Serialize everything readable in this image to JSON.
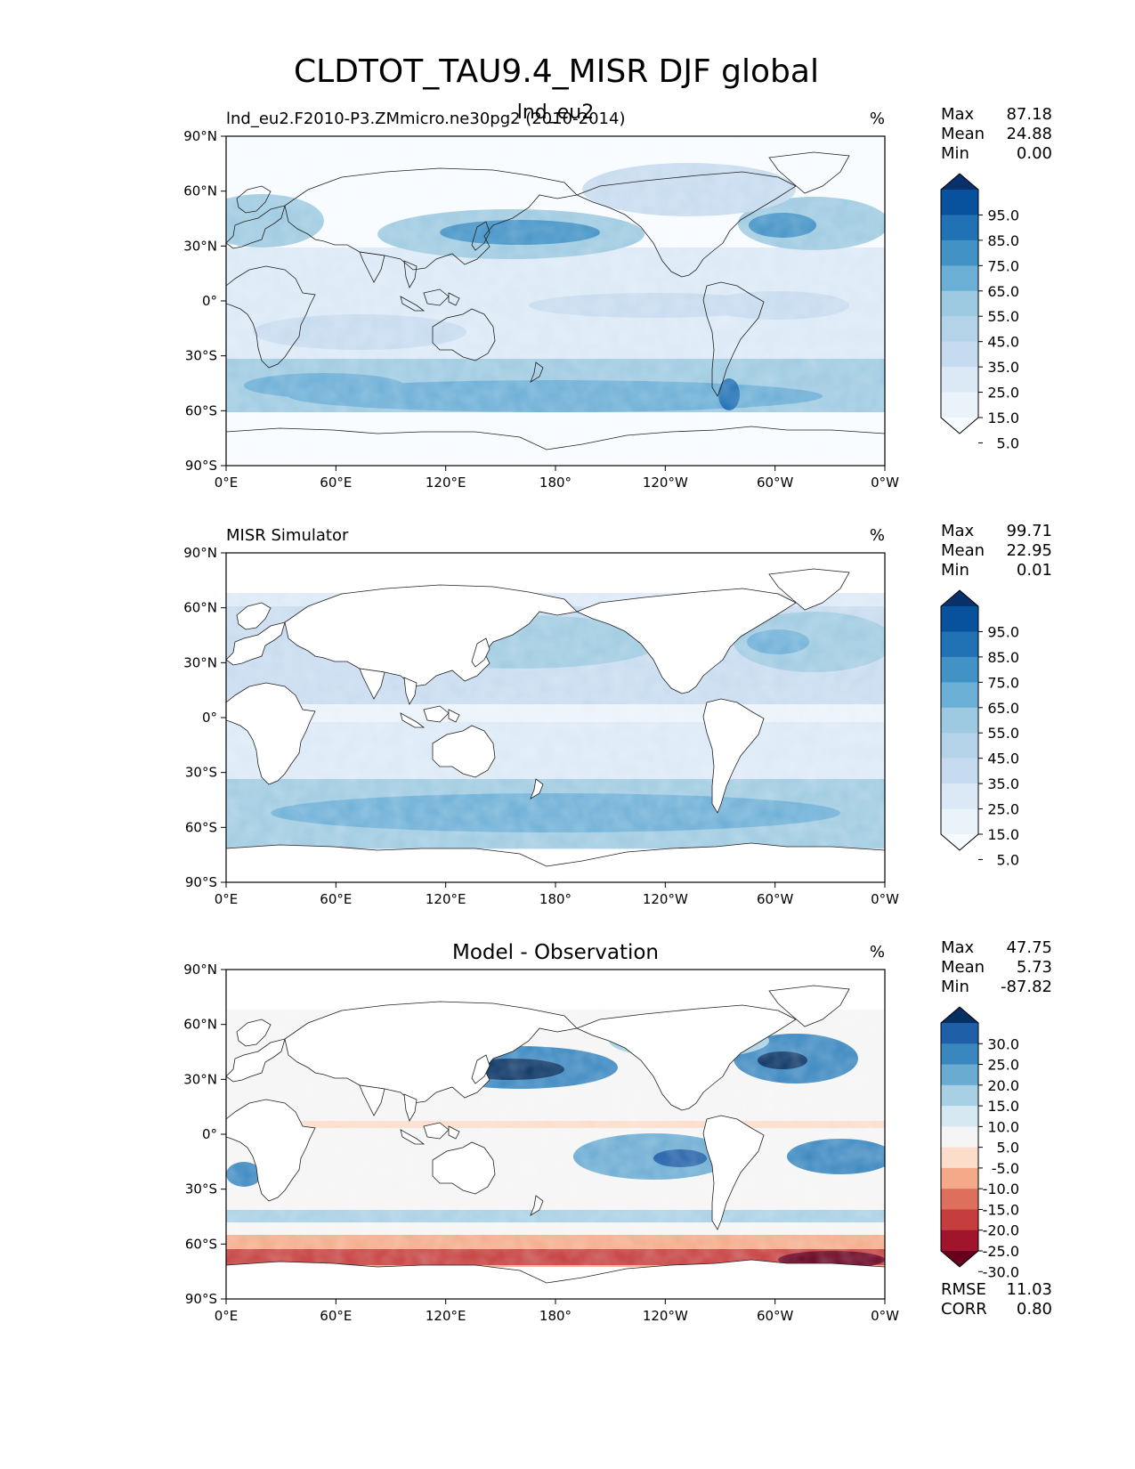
{
  "figure": {
    "title": "CLDTOT_TAU9.4_MISR DJF global",
    "panel_label_overlap": "lnd_eu2"
  },
  "chart_data": [
    {
      "type": "heatmap",
      "title": "",
      "left_title": "lnd_eu2.F2010-P3.ZMmicro.ne30pg2 (2010-2014)",
      "units": "%",
      "x_tick_labels": [
        "0°E",
        "60°E",
        "120°E",
        "180°",
        "120°W",
        "60°W",
        "0°W"
      ],
      "y_tick_labels": [
        "90°N",
        "60°N",
        "30°N",
        "0°",
        "30°S",
        "60°S",
        "90°S"
      ],
      "xlim": [
        0,
        360
      ],
      "ylim": [
        -90,
        90
      ],
      "stats": [
        {
          "label": "Max",
          "value": "87.18"
        },
        {
          "label": "Mean",
          "value": "24.88"
        },
        {
          "label": "Min",
          "value": "0.00"
        }
      ],
      "colorbar": {
        "labels": [
          "95.0",
          "85.0",
          "75.0",
          "65.0",
          "55.0",
          "45.0",
          "35.0",
          "25.0",
          "15.0",
          "5.0"
        ],
        "colors": [
          "#08306b",
          "#08519c",
          "#2171b5",
          "#4292c6",
          "#6baed6",
          "#9ecae1",
          "#b4d3e9",
          "#c6dbef",
          "#dbe9f6",
          "#eaf2fa",
          "#f7fbff"
        ]
      },
      "footer": []
    },
    {
      "type": "heatmap",
      "title": "",
      "left_title": "MISR Simulator",
      "units": "%",
      "x_tick_labels": [
        "0°E",
        "60°E",
        "120°E",
        "180°",
        "120°W",
        "60°W",
        "0°W"
      ],
      "y_tick_labels": [
        "90°N",
        "60°N",
        "30°N",
        "0°",
        "30°S",
        "60°S",
        "90°S"
      ],
      "xlim": [
        0,
        360
      ],
      "ylim": [
        -90,
        90
      ],
      "stats": [
        {
          "label": "Max",
          "value": "99.71"
        },
        {
          "label": "Mean",
          "value": "22.95"
        },
        {
          "label": "Min",
          "value": "0.01"
        }
      ],
      "colorbar": {
        "labels": [
          "95.0",
          "85.0",
          "75.0",
          "65.0",
          "55.0",
          "45.0",
          "35.0",
          "25.0",
          "15.0",
          "5.0"
        ],
        "colors": [
          "#08306b",
          "#08519c",
          "#2171b5",
          "#4292c6",
          "#6baed6",
          "#9ecae1",
          "#b4d3e9",
          "#c6dbef",
          "#dbe9f6",
          "#eaf2fa",
          "#f7fbff"
        ]
      },
      "footer": []
    },
    {
      "type": "heatmap",
      "title": "Model - Observation",
      "left_title": "",
      "units": "%",
      "x_tick_labels": [
        "0°E",
        "60°E",
        "120°E",
        "180°",
        "120°W",
        "60°W",
        "0°W"
      ],
      "y_tick_labels": [
        "90°N",
        "60°N",
        "30°N",
        "0°",
        "30°S",
        "60°S",
        "90°S"
      ],
      "xlim": [
        0,
        360
      ],
      "ylim": [
        -90,
        90
      ],
      "stats": [
        {
          "label": "Max",
          "value": "47.75"
        },
        {
          "label": "Mean",
          "value": "5.73"
        },
        {
          "label": "Min",
          "value": "-87.82"
        }
      ],
      "colorbar": {
        "labels": [
          "30.0",
          "25.0",
          "20.0",
          "15.0",
          "10.0",
          "5.0",
          "-5.0",
          "-10.0",
          "-15.0",
          "-20.0",
          "-25.0",
          "-30.0"
        ],
        "colors": [
          "#053061",
          "#1f5fa7",
          "#3a87c0",
          "#6aabd2",
          "#a7d0e4",
          "#d6e8f2",
          "#f5f5f5",
          "#fcdccb",
          "#f4aa89",
          "#de6f5c",
          "#c53e3d",
          "#a0142c",
          "#67001f"
        ]
      },
      "footer": [
        {
          "label": "RMSE",
          "value": "11.03"
        },
        {
          "label": "CORR",
          "value": "0.80"
        }
      ]
    }
  ]
}
